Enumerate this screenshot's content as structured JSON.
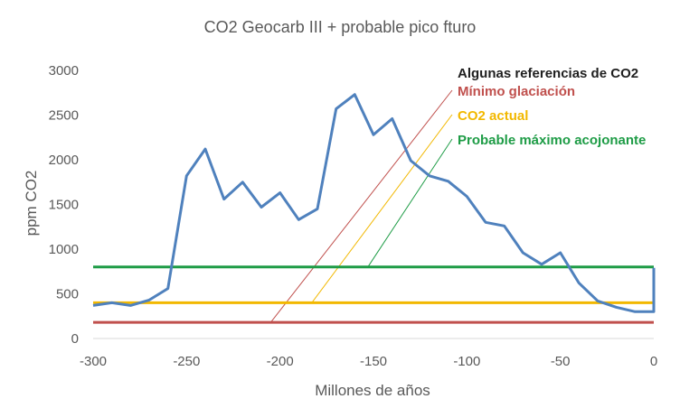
{
  "chart_data": {
    "type": "line",
    "title": "CO2 Geocarb III + probable pico fturo",
    "xlabel": "Millones de años",
    "ylabel": "ppm CO2",
    "xlim": [
      -300,
      0
    ],
    "ylim": [
      0,
      3000
    ],
    "x_ticks": [
      -300,
      -250,
      -200,
      -150,
      -100,
      -50,
      0
    ],
    "y_ticks": [
      0,
      500,
      1000,
      1500,
      2000,
      2500,
      3000
    ],
    "grid": false,
    "series": [
      {
        "color": "#4f81bd",
        "x": [
          -300,
          -290,
          -280,
          -270,
          -260,
          -250,
          -240,
          -230,
          -220,
          -210,
          -200,
          -190,
          -180,
          -170,
          -160,
          -150,
          -140,
          -130,
          -120,
          -110,
          -100,
          -90,
          -80,
          -70,
          -60,
          -50,
          -40,
          -30,
          -20,
          -10,
          -5,
          0,
          0
        ],
        "y": [
          370,
          400,
          370,
          430,
          560,
          1820,
          2120,
          1560,
          1750,
          1470,
          1630,
          1330,
          1450,
          2570,
          2730,
          2280,
          2460,
          1990,
          1820,
          1760,
          1590,
          1300,
          1260,
          960,
          830,
          960,
          620,
          420,
          350,
          300,
          300,
          300,
          790
        ]
      }
    ],
    "references": {
      "title": "Algunas referencias de CO2",
      "lines": [
        {
          "label": "Mínimo glaciación",
          "value": 180,
          "color": "#c0504d",
          "label_color": "#c0504d",
          "leader_start_x": -205
        },
        {
          "label": "CO2 actual",
          "value": 400,
          "color": "#f2b800",
          "label_color": "#f2b800",
          "leader_start_x": -183
        },
        {
          "label": "Probable máximo acojonante",
          "value": 800,
          "color": "#1e9c46",
          "label_color": "#1e9c46",
          "leader_start_x": -153
        }
      ]
    }
  }
}
